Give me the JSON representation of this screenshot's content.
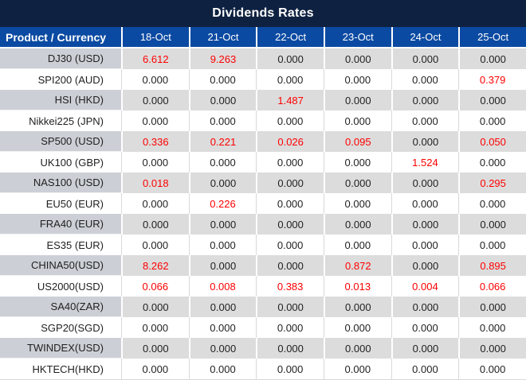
{
  "title": "Dividends Rates",
  "colors": {
    "title_bar_bg": "#0e2140",
    "header_bg": "#0b4aa2",
    "gray_row_product_bg": "#ccd0d6",
    "gray_row_value_bg": "#dcdcdc",
    "white_row_bg": "#ffffff",
    "value_text": "#1f1f1f",
    "highlight_red": "#fe0000",
    "header_text": "#ffffff"
  },
  "table": {
    "product_header": "Product / Currency",
    "date_headers": [
      "18-Oct",
      "21-Oct",
      "22-Oct",
      "23-Oct",
      "24-Oct",
      "25-Oct"
    ],
    "rows": [
      {
        "product": "DJ30 (USD)",
        "values": [
          "6.612",
          "9.263",
          "0.000",
          "0.000",
          "0.000",
          "0.000"
        ],
        "red": [
          1,
          1,
          0,
          0,
          0,
          0
        ]
      },
      {
        "product": "SPI200 (AUD)",
        "values": [
          "0.000",
          "0.000",
          "0.000",
          "0.000",
          "0.000",
          "0.379"
        ],
        "red": [
          0,
          0,
          0,
          0,
          0,
          1
        ]
      },
      {
        "product": "HSI (HKD)",
        "values": [
          "0.000",
          "0.000",
          "1.487",
          "0.000",
          "0.000",
          "0.000"
        ],
        "red": [
          0,
          0,
          1,
          0,
          0,
          0
        ]
      },
      {
        "product": "Nikkei225 (JPN)",
        "values": [
          "0.000",
          "0.000",
          "0.000",
          "0.000",
          "0.000",
          "0.000"
        ],
        "red": [
          0,
          0,
          0,
          0,
          0,
          0
        ]
      },
      {
        "product": "SP500 (USD)",
        "values": [
          "0.336",
          "0.221",
          "0.026",
          "0.095",
          "0.000",
          "0.050"
        ],
        "red": [
          1,
          1,
          1,
          1,
          0,
          1
        ]
      },
      {
        "product": "UK100 (GBP)",
        "values": [
          "0.000",
          "0.000",
          "0.000",
          "0.000",
          "1.524",
          "0.000"
        ],
        "red": [
          0,
          0,
          0,
          0,
          1,
          0
        ]
      },
      {
        "product": "NAS100 (USD)",
        "values": [
          "0.018",
          "0.000",
          "0.000",
          "0.000",
          "0.000",
          "0.295"
        ],
        "red": [
          1,
          0,
          0,
          0,
          0,
          1
        ]
      },
      {
        "product": "EU50 (EUR)",
        "values": [
          "0.000",
          "0.226",
          "0.000",
          "0.000",
          "0.000",
          "0.000"
        ],
        "red": [
          0,
          1,
          0,
          0,
          0,
          0
        ]
      },
      {
        "product": "FRA40 (EUR)",
        "values": [
          "0.000",
          "0.000",
          "0.000",
          "0.000",
          "0.000",
          "0.000"
        ],
        "red": [
          0,
          0,
          0,
          0,
          0,
          0
        ]
      },
      {
        "product": "ES35 (EUR)",
        "values": [
          "0.000",
          "0.000",
          "0.000",
          "0.000",
          "0.000",
          "0.000"
        ],
        "red": [
          0,
          0,
          0,
          0,
          0,
          0
        ]
      },
      {
        "product": "CHINA50(USD)",
        "values": [
          "8.262",
          "0.000",
          "0.000",
          "0.872",
          "0.000",
          "0.895"
        ],
        "red": [
          1,
          0,
          0,
          1,
          0,
          1
        ]
      },
      {
        "product": "US2000(USD)",
        "values": [
          "0.066",
          "0.008",
          "0.383",
          "0.013",
          "0.004",
          "0.066"
        ],
        "red": [
          1,
          1,
          1,
          1,
          1,
          1
        ]
      },
      {
        "product": "SA40(ZAR)",
        "values": [
          "0.000",
          "0.000",
          "0.000",
          "0.000",
          "0.000",
          "0.000"
        ],
        "red": [
          0,
          0,
          0,
          0,
          0,
          0
        ]
      },
      {
        "product": "SGP20(SGD)",
        "values": [
          "0.000",
          "0.000",
          "0.000",
          "0.000",
          "0.000",
          "0.000"
        ],
        "red": [
          0,
          0,
          0,
          0,
          0,
          0
        ]
      },
      {
        "product": "TWINDEX(USD)",
        "values": [
          "0.000",
          "0.000",
          "0.000",
          "0.000",
          "0.000",
          "0.000"
        ],
        "red": [
          0,
          0,
          0,
          0,
          0,
          0
        ]
      },
      {
        "product": "HKTECH(HKD)",
        "values": [
          "0.000",
          "0.000",
          "0.000",
          "0.000",
          "0.000",
          "0.000"
        ],
        "red": [
          0,
          0,
          0,
          0,
          0,
          0
        ]
      }
    ]
  }
}
